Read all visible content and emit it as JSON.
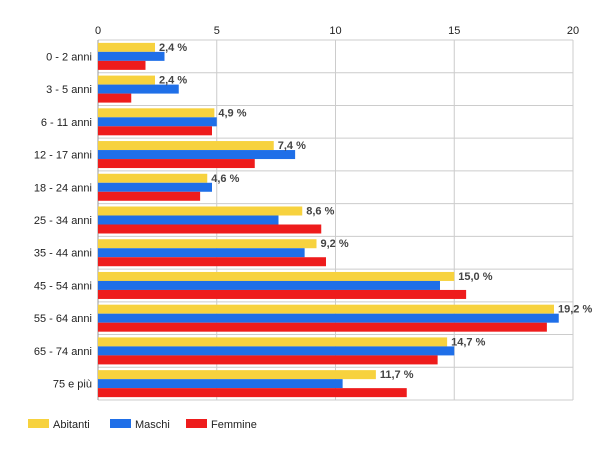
{
  "chart_data": {
    "type": "bar",
    "orientation": "horizontal",
    "categories": [
      "0 - 2 anni",
      "3 - 5 anni",
      "6 - 11 anni",
      "12 - 17 anni",
      "18 - 24 anni",
      "25 - 34 anni",
      "35 - 44 anni",
      "45 - 54 anni",
      "55 - 64 anni",
      "65 - 74 anni",
      "75 e più"
    ],
    "series": [
      {
        "name": "Abitanti",
        "color": "#f7d23e",
        "values": [
          2.4,
          2.4,
          4.9,
          7.4,
          4.6,
          8.6,
          9.2,
          15.0,
          19.2,
          14.7,
          11.7
        ]
      },
      {
        "name": "Maschi",
        "color": "#1f6fe8",
        "values": [
          2.8,
          3.4,
          5.0,
          8.3,
          4.8,
          7.6,
          8.7,
          14.4,
          19.4,
          15.0,
          10.3
        ]
      },
      {
        "name": "Femmine",
        "color": "#ee1c1c",
        "values": [
          2.0,
          1.4,
          4.8,
          6.6,
          4.3,
          9.4,
          9.6,
          15.5,
          18.9,
          14.3,
          13.0
        ]
      }
    ],
    "data_labels": [
      "2,4 %",
      "2,4 %",
      "4,9 %",
      "7,4 %",
      "4,6 %",
      "8,6 %",
      "9,2 %",
      "15,0 %",
      "19,2 %",
      "14,7 %",
      "11,7 %"
    ],
    "x_ticks": [
      "0",
      "5",
      "10",
      "15",
      "20"
    ],
    "xlim": [
      0,
      20
    ],
    "grid": true,
    "legend_position": "bottom-left",
    "title": "",
    "xlabel": "",
    "ylabel": ""
  }
}
